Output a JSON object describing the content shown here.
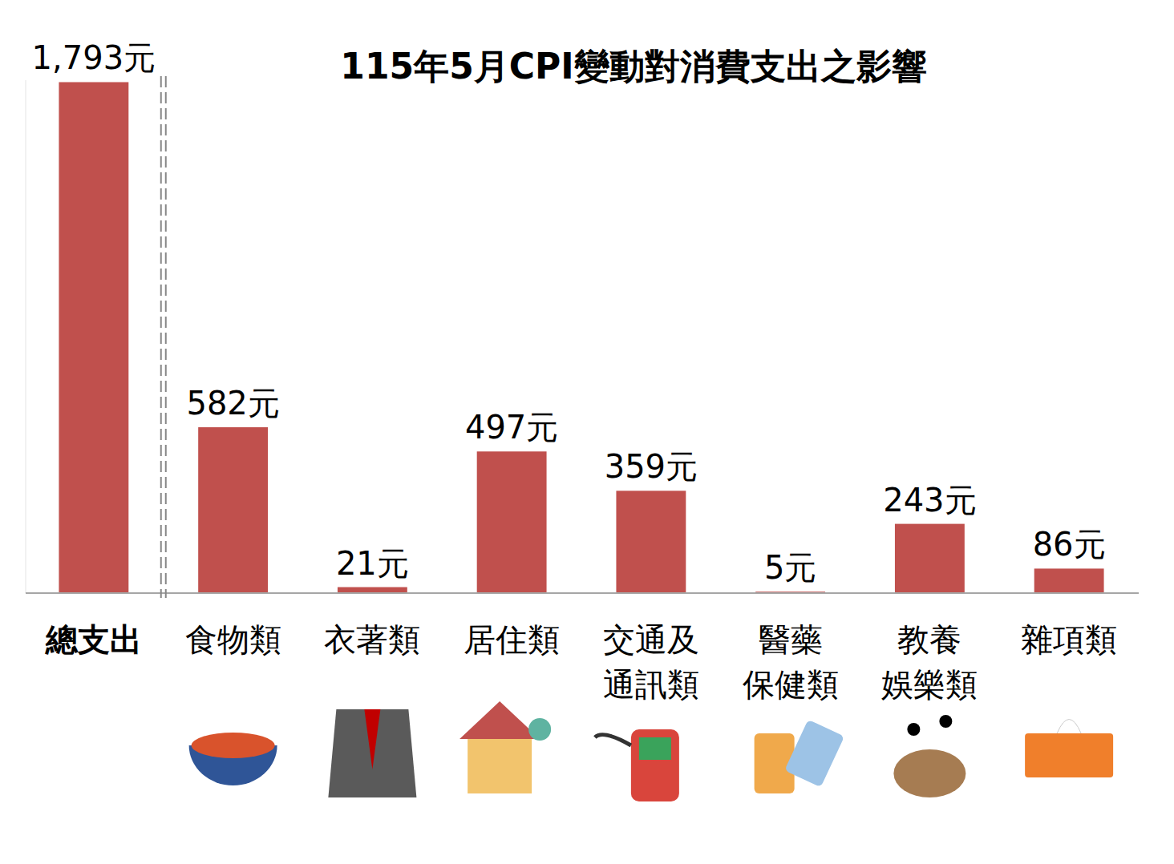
{
  "chart_data": {
    "type": "bar",
    "title": "115年5月CPI變動對消費支出之影響",
    "categories": [
      "總支出",
      "食物類",
      "衣著類",
      "居住類",
      "交通及通訊類",
      "醫藥保健類",
      "教養娛樂類",
      "雜項類"
    ],
    "values": [
      1793,
      582,
      21,
      497,
      359,
      5,
      243,
      86
    ],
    "value_labels": [
      "1,793元",
      "582元",
      "21元",
      "497元",
      "359元",
      "5元",
      "243元",
      "86元"
    ],
    "color": "#c0504d",
    "ylim": [
      0,
      1800
    ],
    "grid": false,
    "data_labels": true,
    "tick_labels": false
  }
}
